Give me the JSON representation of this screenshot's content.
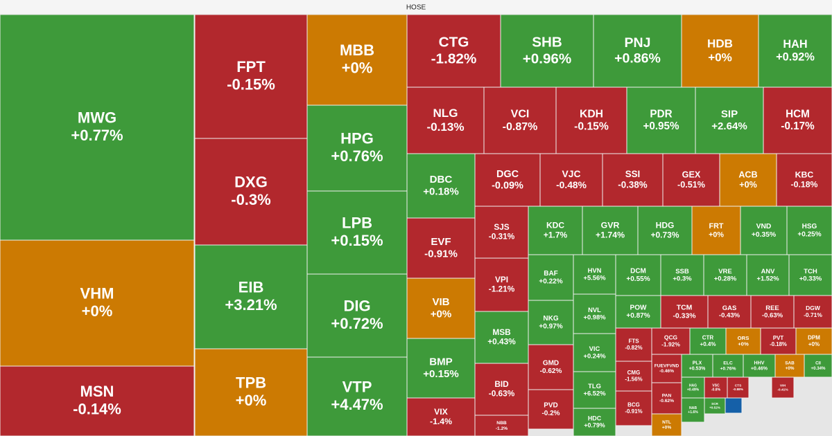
{
  "chart_data": {
    "type": "treemap",
    "title": "HOSE",
    "colors": {
      "up": "#3e9a3a",
      "down": "#b2282d",
      "flat": "#cc7a02"
    },
    "categories": [
      "MWG",
      "VHM",
      "MSN",
      "FPT",
      "DXG",
      "EIB",
      "TPB",
      "MBB",
      "HPG",
      "LPB",
      "DIG",
      "VTP",
      "CTG",
      "SHB",
      "PNJ",
      "HDB",
      "HAH",
      "NLG",
      "VCI",
      "KDH",
      "PDR",
      "SIP",
      "HCM",
      "DBC",
      "EVF",
      "VIB",
      "BMP",
      "VIX",
      "DGC",
      "VJC",
      "SSI",
      "GEX",
      "ACB",
      "KBC",
      "SJS",
      "VPI",
      "MSB",
      "BID",
      "NBB",
      "KDC",
      "GVR",
      "HDG",
      "FRT",
      "VND",
      "HSG",
      "BAF",
      "NKG",
      "GMD",
      "PVD",
      "HVN",
      "NVL",
      "VIC",
      "TLG",
      "HDC",
      "DCM",
      "SSB",
      "VRE",
      "ANV",
      "TCH",
      "POW",
      "TCM",
      "GAS",
      "REE",
      "DGW",
      "FTS",
      "CMG",
      "BCG",
      "QCG",
      "CTR",
      "ORS",
      "PVT",
      "DPM",
      "FUEVFVND",
      "PAN",
      "NTL",
      "PLX",
      "ELC",
      "HHV",
      "SAB",
      "CII",
      "HAG",
      "VSC",
      "CTS",
      "VIH",
      "NAB",
      "SCR"
    ],
    "values": [
      0.77,
      0,
      -0.14,
      -0.15,
      -0.3,
      3.21,
      0,
      0,
      0.76,
      0.15,
      0.72,
      4.47,
      -1.82,
      0.96,
      0.86,
      0,
      0.92,
      -0.13,
      -0.87,
      -0.15,
      0.95,
      2.64,
      -0.17,
      0.18,
      -0.91,
      0,
      0.15,
      -1.4,
      -0.09,
      -0.48,
      -0.38,
      -0.51,
      0,
      -0.18,
      -0.31,
      -1.21,
      0.43,
      -0.63,
      -1.2,
      1.7,
      1.74,
      0.73,
      0,
      0.35,
      0.25,
      0.22,
      0.97,
      -0.62,
      -0.2,
      5.56,
      0.98,
      0.24,
      6.52,
      0.79,
      0.55,
      0.3,
      0.28,
      1.52,
      0.33,
      0.87,
      -0.33,
      -0.43,
      -0.63,
      -0.71,
      -0.82,
      -1.56,
      -0.91,
      -1.92,
      0.4,
      0,
      -0.18,
      0,
      -0.46,
      -0.62,
      0,
      0.53,
      0.76,
      0.46,
      0,
      0.34,
      0.49,
      -0.8,
      -0.88,
      -0.41,
      1.6,
      0.52
    ],
    "value_labels": [
      "+0.77%",
      "+0%",
      "-0.14%",
      "-0.15%",
      "-0.3%",
      "+3.21%",
      "+0%",
      "+0%",
      "+0.76%",
      "+0.15%",
      "+0.72%",
      "+4.47%",
      "-1.82%",
      "+0.96%",
      "+0.86%",
      "+0%",
      "+0.92%",
      "-0.13%",
      "-0.87%",
      "-0.15%",
      "+0.95%",
      "+2.64%",
      "-0.17%",
      "+0.18%",
      "-0.91%",
      "+0%",
      "+0.15%",
      "-1.4%",
      "-0.09%",
      "-0.48%",
      "-0.38%",
      "-0.51%",
      "+0%",
      "-0.18%",
      "-0.31%",
      "-1.21%",
      "+0.43%",
      "-0.63%",
      "-1.2%",
      "+1.7%",
      "+1.74%",
      "+0.73%",
      "+0%",
      "+0.35%",
      "+0.25%",
      "+0.22%",
      "+0.97%",
      "-0.62%",
      "-0.2%",
      "+5.56%",
      "+0.98%",
      "+0.24%",
      "+6.52%",
      "+0.79%",
      "+0.55%",
      "+0.3%",
      "+0.28%",
      "+1.52%",
      "+0.33%",
      "+0.87%",
      "-0.33%",
      "-0.43%",
      "-0.63%",
      "-0.71%",
      "-0.82%",
      "-1.56%",
      "-0.91%",
      "-1.92%",
      "+0.4%",
      "+0%",
      "-0.18%",
      "+0%",
      "-0.46%",
      "-0.62%",
      "+0%",
      "+0.53%",
      "+0.76%",
      "+0.46%",
      "+0%",
      "+0.34%",
      "+0.49%",
      "-0.8%",
      "-0.88%",
      "-0.41%",
      "+1.6%",
      "+0.52%"
    ]
  }
}
